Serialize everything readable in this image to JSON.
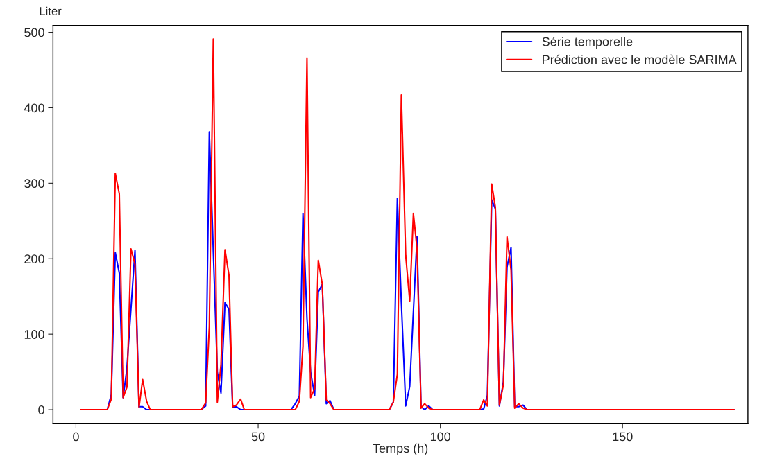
{
  "chart_data": {
    "type": "line",
    "xlabel": "Temps (h)",
    "ylabel": "Liter",
    "xlim": [
      -6.3,
      184.4
    ],
    "ylim": [
      -18.5,
      509
    ],
    "xticks": [
      0,
      50,
      100,
      150
    ],
    "yticks": [
      0,
      100,
      200,
      300,
      400,
      500
    ],
    "grid": false,
    "legend": "top right",
    "line_style": "solid",
    "marker": "none",
    "series": [
      {
        "name": "Série temporelle",
        "color": "#0000ff",
        "x": [
          1.3,
          8.6,
          9.7,
          10.8,
          11.9,
          12.95,
          13.95,
          16.2,
          17.3,
          18.3,
          19.4,
          34.4,
          35.6,
          36.6,
          38.8,
          39.8,
          40.9,
          42.0,
          43.0,
          44.0,
          45.2,
          46.2,
          59.0,
          60.2,
          61.3,
          62.3,
          63.4,
          64.4,
          65.5,
          66.5,
          67.6,
          68.7,
          69.7,
          70.8,
          86.0,
          87.1,
          88.2,
          89.3,
          90.5,
          91.6,
          93.6,
          94.7,
          95.7,
          96.8,
          97.9,
          110.8,
          111.9,
          112.9,
          114.1,
          115.1,
          116.2,
          117.3,
          118.3,
          119.4,
          120.4,
          121.5,
          122.7,
          123.8,
          180.6
        ],
        "values": [
          0,
          0,
          20,
          208,
          181,
          16,
          53,
          211,
          4,
          4,
          0,
          0,
          5,
          368,
          50,
          22,
          142,
          133,
          3,
          4,
          0,
          0,
          0,
          8,
          18,
          260,
          121,
          50,
          19,
          156,
          166,
          8,
          12,
          0,
          0,
          10,
          280,
          142,
          5,
          31,
          229,
          4,
          0,
          5,
          0,
          0,
          1,
          19,
          278,
          266,
          5,
          37,
          189,
          215,
          4,
          4,
          6,
          0,
          0
        ]
      },
      {
        "name": "Prédiction avec le modèle SARIMA",
        "color": "#ff0000",
        "x": [
          1.3,
          8.6,
          9.7,
          10.8,
          11.9,
          12.95,
          14.0,
          15.1,
          16.2,
          17.3,
          18.3,
          19.4,
          20.4,
          34.4,
          35.6,
          36.6,
          37.7,
          38.8,
          39.8,
          40.9,
          42.0,
          43.0,
          44.0,
          45.2,
          46.2,
          60.2,
          61.3,
          62.3,
          63.4,
          64.4,
          65.5,
          66.5,
          67.6,
          68.7,
          69.7,
          70.8,
          86.0,
          87.1,
          88.2,
          89.3,
          90.5,
          91.6,
          92.6,
          93.6,
          94.7,
          95.7,
          96.8,
          97.9,
          110.8,
          111.9,
          112.9,
          114.1,
          115.1,
          116.2,
          117.3,
          118.3,
          119.4,
          120.4,
          121.5,
          122.7,
          123.8,
          180.6
        ],
        "values": [
          0,
          0,
          14,
          313,
          286,
          16,
          30,
          213,
          193,
          3,
          40,
          11,
          0,
          0,
          9,
          110,
          491,
          10,
          60,
          212,
          178,
          4,
          6,
          14,
          0,
          0,
          11,
          84,
          466,
          16,
          28,
          198,
          166,
          13,
          8,
          0,
          0,
          10,
          47,
          417,
          204,
          144,
          260,
          213,
          2,
          8,
          2,
          0,
          0,
          13,
          5,
          299,
          268,
          6,
          33,
          229,
          185,
          2,
          8,
          2,
          0,
          0
        ]
      }
    ]
  }
}
